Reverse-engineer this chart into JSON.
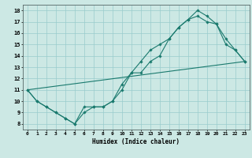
{
  "xlabel": "Humidex (Indice chaleur)",
  "bg_color": "#cce8e4",
  "line_color": "#1a7a6e",
  "grid_color": "#99cccc",
  "xlim": [
    -0.5,
    23.5
  ],
  "ylim": [
    7.5,
    18.5
  ],
  "xticks": [
    0,
    1,
    2,
    3,
    4,
    5,
    6,
    7,
    8,
    9,
    10,
    11,
    12,
    13,
    14,
    15,
    16,
    17,
    18,
    19,
    20,
    21,
    22,
    23
  ],
  "yticks": [
    8,
    9,
    10,
    11,
    12,
    13,
    14,
    15,
    16,
    17,
    18
  ],
  "line1_x": [
    0,
    1,
    2,
    3,
    4,
    5,
    6,
    7,
    8,
    9,
    10,
    11,
    12,
    13,
    14,
    15,
    16,
    17,
    18,
    19,
    20,
    21,
    22,
    23
  ],
  "line1_y": [
    11,
    10,
    9.5,
    9.0,
    8.5,
    8.0,
    9.5,
    9.5,
    9.5,
    10.0,
    11.5,
    12.5,
    13.5,
    14.5,
    15.0,
    15.5,
    16.5,
    17.2,
    18.0,
    17.5,
    16.8,
    15.5,
    14.5,
    13.5
  ],
  "line2_x": [
    0,
    1,
    2,
    3,
    4,
    5,
    6,
    7,
    8,
    9,
    10,
    11,
    12,
    13,
    14,
    15,
    16,
    17,
    18,
    19,
    20,
    21,
    22,
    23
  ],
  "line2_y": [
    11,
    10,
    9.5,
    9.0,
    8.5,
    8.0,
    9.0,
    9.5,
    9.5,
    10.0,
    11.0,
    12.5,
    12.5,
    13.5,
    14.0,
    15.5,
    16.5,
    17.2,
    17.5,
    17.0,
    16.8,
    15.0,
    14.5,
    13.5
  ],
  "line3_x": [
    0,
    23
  ],
  "line3_y": [
    11,
    13.5
  ]
}
